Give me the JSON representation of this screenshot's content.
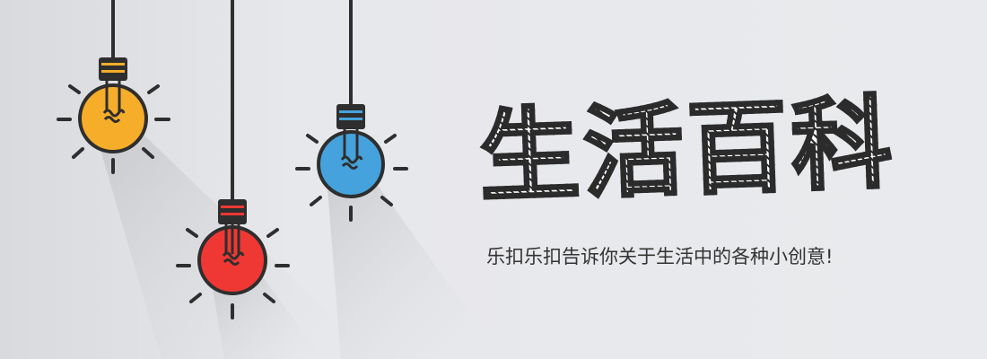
{
  "title": "生活百科",
  "subtitle": "乐扣乐扣告诉你关于生活中的各种小创意!",
  "colors": {
    "background": "#e6e7ea",
    "bulb_yellow": "#f5ad2a",
    "bulb_blue": "#45a2dc",
    "bulb_red": "#ef3834",
    "outline": "#2e2e2e"
  },
  "icons": [
    "lightbulb-yellow-icon",
    "lightbulb-blue-icon",
    "lightbulb-red-icon"
  ]
}
